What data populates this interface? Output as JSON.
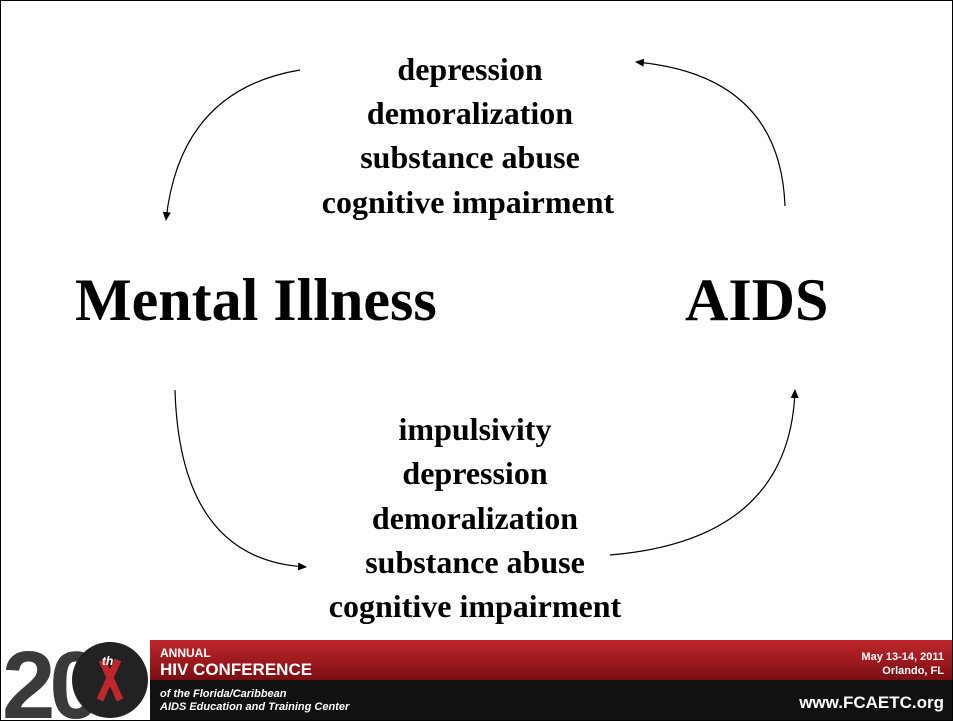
{
  "top_list": [
    "depression",
    "demoralization",
    "substance abuse",
    "cognitive impairment"
  ],
  "nodes": [
    {
      "label": "Mental Illness"
    },
    {
      "label": "AIDS"
    }
  ],
  "bottom_list": [
    "impulsivity",
    "depression",
    "demoralization",
    "substance abuse",
    "cognitive impairment"
  ],
  "footer": {
    "number": "20",
    "ordinal": "th",
    "annual": "ANNUAL",
    "conference": "HIV CONFERENCE",
    "org_line1": "of the Florida/Caribbean",
    "org_line2": "AIDS Education and Training Center",
    "dates": "May 13-14, 2011",
    "place": "Orlando, FL",
    "url": "www.FCAETC.org"
  }
}
